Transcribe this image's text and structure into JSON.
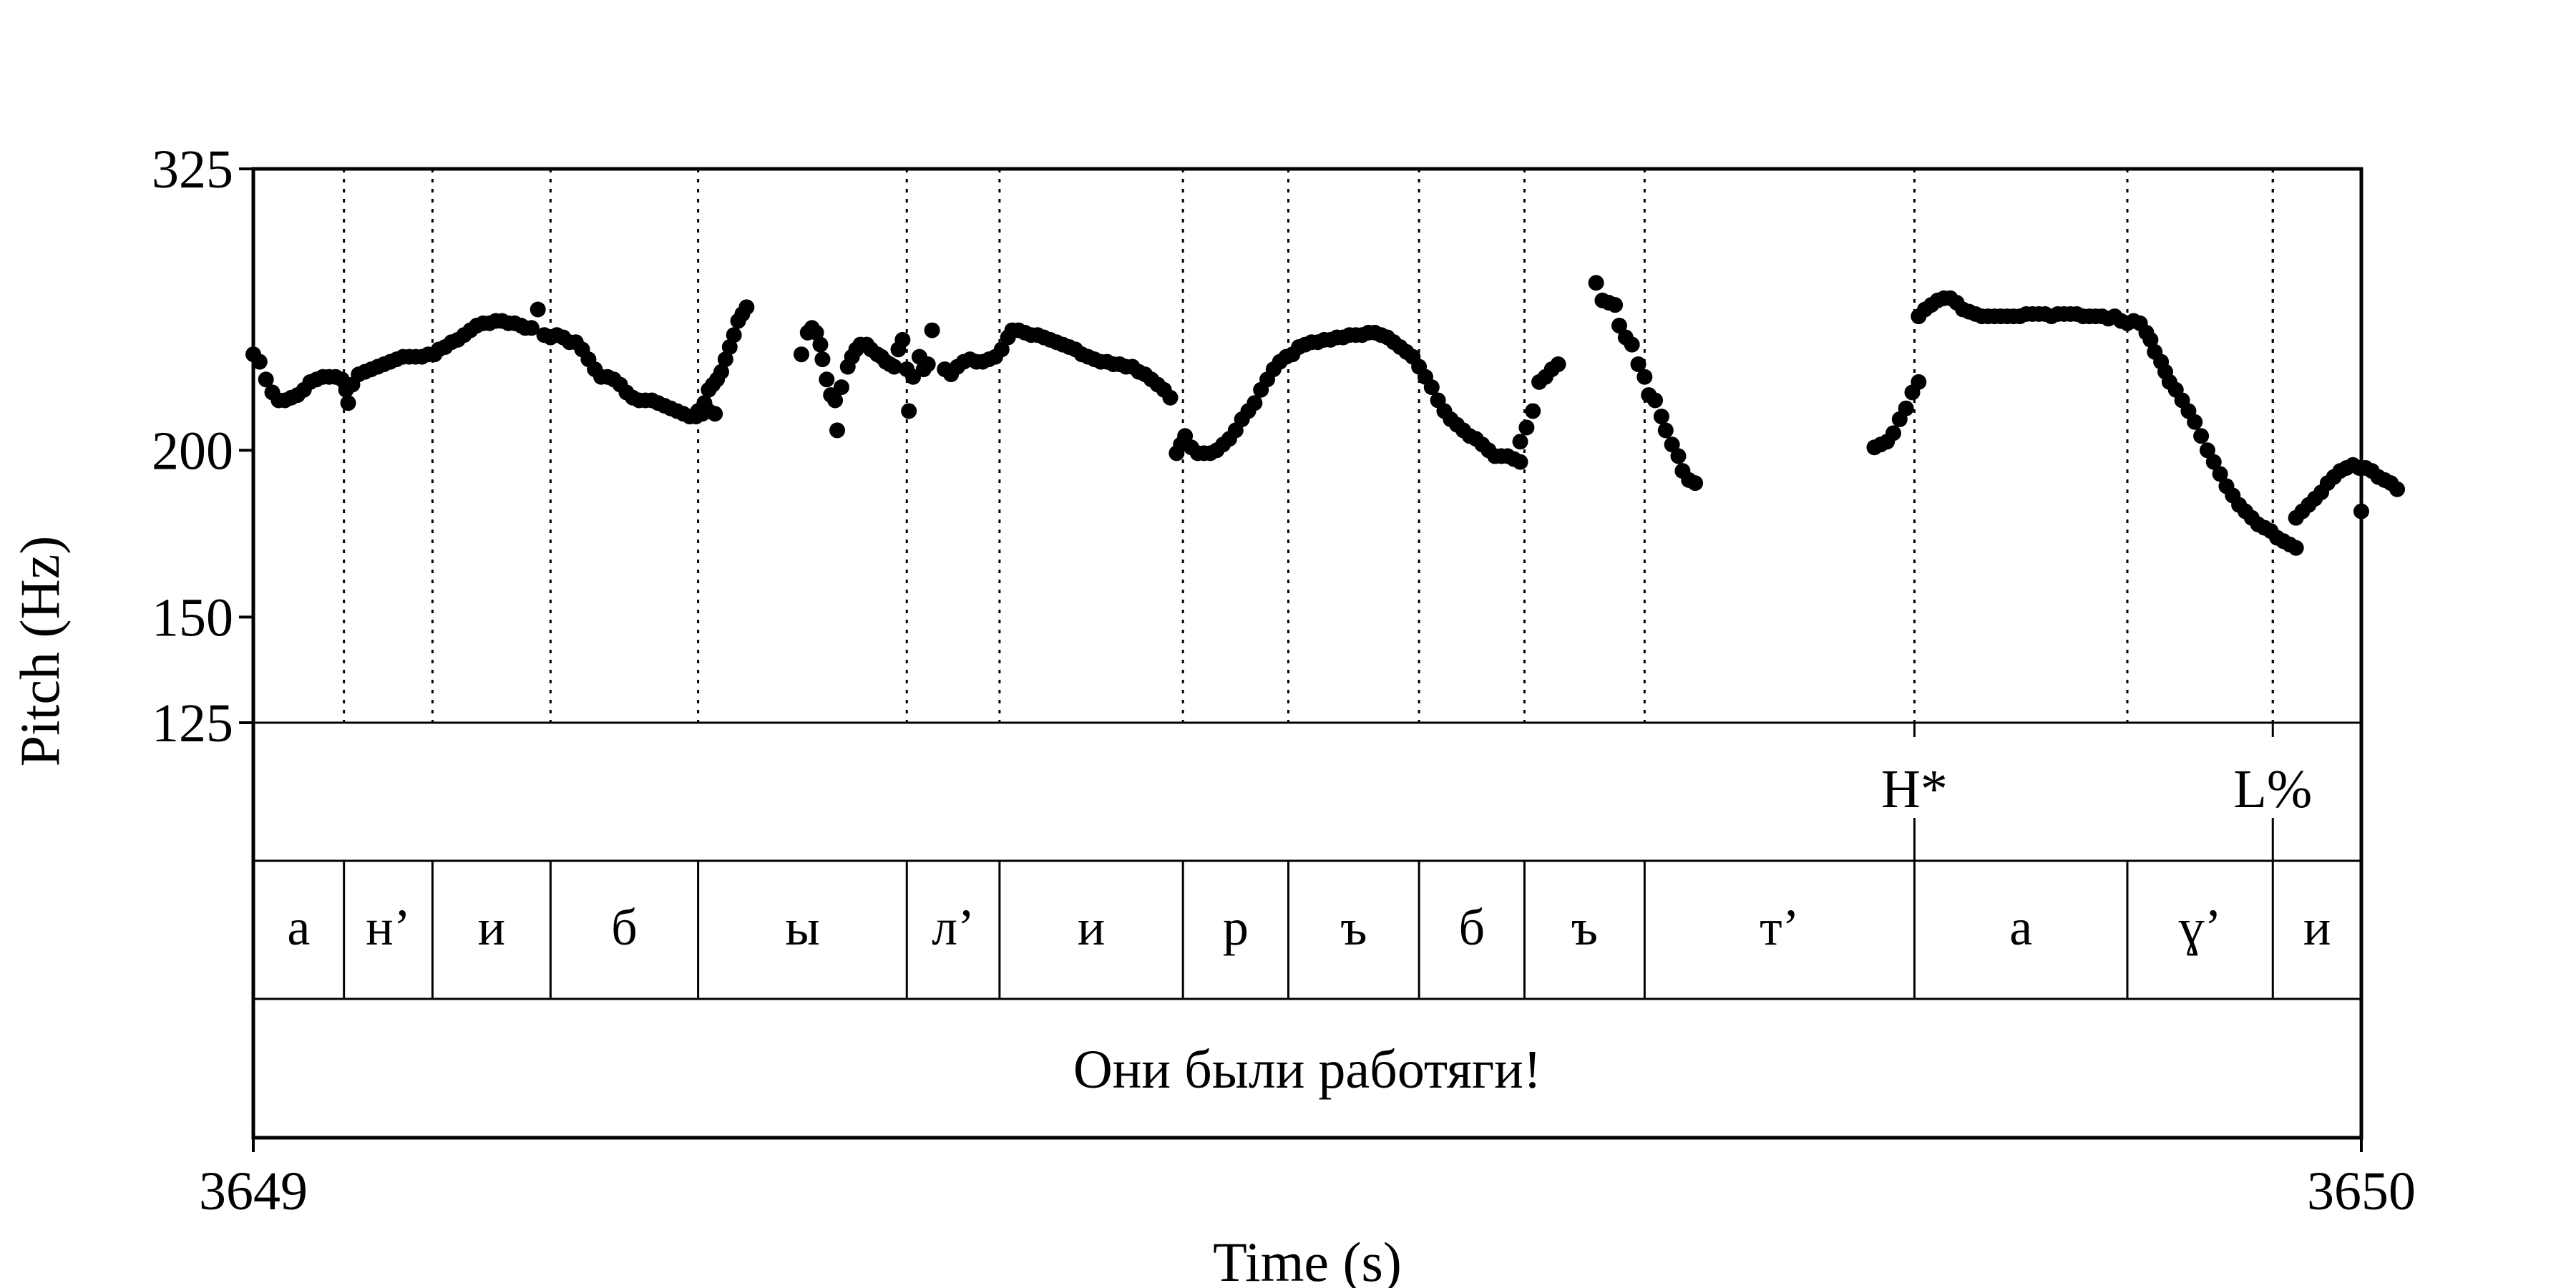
{
  "chart_data": {
    "type": "scatter",
    "ylabel": "Pitch (Hz)",
    "xlabel": "Time (s)",
    "xlim": [
      3649,
      3650
    ],
    "ylim": [
      125,
      325
    ],
    "y_scale": "log",
    "y_ticks": [
      "125",
      "150",
      "200",
      "325"
    ],
    "x_ticks": [
      "3649",
      "3650"
    ],
    "grid": false,
    "legend": "none",
    "pitch_points": [
      [
        3649.0,
        236
      ],
      [
        3649.003,
        233
      ],
      [
        3649.006,
        226
      ],
      [
        3649.009,
        221
      ],
      [
        3649.012,
        218
      ],
      [
        3649.015,
        218
      ],
      [
        3649.018,
        219
      ],
      [
        3649.021,
        220
      ],
      [
        3649.024,
        222
      ],
      [
        3649.027,
        225
      ],
      [
        3649.03,
        226
      ],
      [
        3649.033,
        227
      ],
      [
        3649.036,
        227
      ],
      [
        3649.039,
        227
      ],
      [
        3649.042,
        226
      ],
      [
        3649.044,
        222
      ],
      [
        3649.045,
        217
      ],
      [
        3649.047,
        224
      ],
      [
        3649.05,
        228
      ],
      [
        3649.053,
        229
      ],
      [
        3649.056,
        230
      ],
      [
        3649.059,
        231
      ],
      [
        3649.062,
        232
      ],
      [
        3649.065,
        233
      ],
      [
        3649.068,
        234
      ],
      [
        3649.071,
        235
      ],
      [
        3649.074,
        235
      ],
      [
        3649.077,
        235
      ],
      [
        3649.08,
        235
      ],
      [
        3649.083,
        236
      ],
      [
        3649.086,
        236
      ],
      [
        3649.088,
        238
      ],
      [
        3649.091,
        239
      ],
      [
        3649.094,
        241
      ],
      [
        3649.097,
        242
      ],
      [
        3649.1,
        244
      ],
      [
        3649.103,
        246
      ],
      [
        3649.106,
        248
      ],
      [
        3649.109,
        249
      ],
      [
        3649.112,
        249
      ],
      [
        3649.115,
        250
      ],
      [
        3649.118,
        250
      ],
      [
        3649.121,
        249
      ],
      [
        3649.124,
        249
      ],
      [
        3649.127,
        248
      ],
      [
        3649.129,
        247
      ],
      [
        3649.132,
        247
      ],
      [
        3649.135,
        255
      ],
      [
        3649.138,
        244
      ],
      [
        3649.141,
        243
      ],
      [
        3649.144,
        244
      ],
      [
        3649.147,
        243
      ],
      [
        3649.15,
        241
      ],
      [
        3649.153,
        241
      ],
      [
        3649.156,
        238
      ],
      [
        3649.159,
        234
      ],
      [
        3649.162,
        230
      ],
      [
        3649.165,
        227
      ],
      [
        3649.168,
        227
      ],
      [
        3649.171,
        226
      ],
      [
        3649.174,
        224
      ],
      [
        3649.177,
        221
      ],
      [
        3649.18,
        219
      ],
      [
        3649.183,
        218
      ],
      [
        3649.186,
        218
      ],
      [
        3649.189,
        218
      ],
      [
        3649.192,
        217
      ],
      [
        3649.195,
        216
      ],
      [
        3649.198,
        215
      ],
      [
        3649.201,
        214
      ],
      [
        3649.204,
        213
      ],
      [
        3649.207,
        212
      ],
      [
        3649.21,
        212
      ],
      [
        3649.213,
        213
      ],
      [
        3649.216,
        214
      ],
      [
        3649.219,
        213
      ],
      [
        3649.211,
        214
      ],
      [
        3649.213,
        215
      ],
      [
        3649.214,
        217
      ],
      [
        3649.216,
        222
      ],
      [
        3649.218,
        224
      ],
      [
        3649.22,
        226
      ],
      [
        3649.222,
        229
      ],
      [
        3649.224,
        234
      ],
      [
        3649.226,
        239
      ],
      [
        3649.228,
        244
      ],
      [
        3649.23,
        250
      ],
      [
        3649.232,
        253
      ],
      [
        3649.234,
        256
      ],
      [
        3649.26,
        236
      ],
      [
        3649.263,
        245
      ],
      [
        3649.265,
        247
      ],
      [
        3649.267,
        245
      ],
      [
        3649.269,
        240
      ],
      [
        3649.27,
        234
      ],
      [
        3649.272,
        226
      ],
      [
        3649.274,
        220
      ],
      [
        3649.276,
        218
      ],
      [
        3649.277,
        207
      ],
      [
        3649.279,
        223
      ],
      [
        3649.282,
        231
      ],
      [
        3649.284,
        235
      ],
      [
        3649.286,
        238
      ],
      [
        3649.288,
        240
      ],
      [
        3649.291,
        240
      ],
      [
        3649.293,
        238
      ],
      [
        3649.296,
        236
      ],
      [
        3649.298,
        235
      ],
      [
        3649.3,
        233
      ],
      [
        3649.302,
        232
      ],
      [
        3649.304,
        231
      ],
      [
        3649.306,
        238
      ],
      [
        3649.308,
        242
      ],
      [
        3649.31,
        230
      ],
      [
        3649.311,
        214
      ],
      [
        3649.313,
        227
      ],
      [
        3649.316,
        235
      ],
      [
        3649.318,
        230
      ],
      [
        3649.32,
        232
      ],
      [
        3649.322,
        246
      ],
      [
        3649.328,
        230
      ],
      [
        3649.331,
        228
      ],
      [
        3649.334,
        231
      ],
      [
        3649.337,
        233
      ],
      [
        3649.34,
        234
      ],
      [
        3649.343,
        233
      ],
      [
        3649.346,
        233
      ],
      [
        3649.349,
        234
      ],
      [
        3649.352,
        235
      ],
      [
        3649.355,
        238
      ],
      [
        3649.358,
        243
      ],
      [
        3649.36,
        246
      ],
      [
        3649.363,
        246
      ],
      [
        3649.366,
        245
      ],
      [
        3649.369,
        244
      ],
      [
        3649.372,
        244
      ],
      [
        3649.375,
        243
      ],
      [
        3649.378,
        242
      ],
      [
        3649.381,
        241
      ],
      [
        3649.384,
        240
      ],
      [
        3649.387,
        239
      ],
      [
        3649.39,
        238
      ],
      [
        3649.393,
        236
      ],
      [
        3649.396,
        235
      ],
      [
        3649.399,
        234
      ],
      [
        3649.402,
        233
      ],
      [
        3649.405,
        233
      ],
      [
        3649.408,
        232
      ],
      [
        3649.411,
        232
      ],
      [
        3649.414,
        231
      ],
      [
        3649.417,
        231
      ],
      [
        3649.42,
        229
      ],
      [
        3649.423,
        228
      ],
      [
        3649.426,
        226
      ],
      [
        3649.429,
        224
      ],
      [
        3649.432,
        222
      ],
      [
        3649.435,
        219
      ],
      [
        3649.438,
        199
      ],
      [
        3649.44,
        202
      ],
      [
        3649.442,
        205
      ],
      [
        3649.445,
        201
      ],
      [
        3649.448,
        199
      ],
      [
        3649.451,
        199
      ],
      [
        3649.454,
        199
      ],
      [
        3649.457,
        200
      ],
      [
        3649.46,
        202
      ],
      [
        3649.463,
        204
      ],
      [
        3649.466,
        207
      ],
      [
        3649.469,
        211
      ],
      [
        3649.472,
        214
      ],
      [
        3649.475,
        217
      ],
      [
        3649.478,
        222
      ],
      [
        3649.481,
        226
      ],
      [
        3649.484,
        230
      ],
      [
        3649.487,
        233
      ],
      [
        3649.49,
        235
      ],
      [
        3649.493,
        236
      ],
      [
        3649.496,
        239
      ],
      [
        3649.499,
        240
      ],
      [
        3649.502,
        241
      ],
      [
        3649.505,
        241
      ],
      [
        3649.508,
        242
      ],
      [
        3649.511,
        242
      ],
      [
        3649.514,
        243
      ],
      [
        3649.517,
        243
      ],
      [
        3649.52,
        244
      ],
      [
        3649.523,
        244
      ],
      [
        3649.526,
        244
      ],
      [
        3649.529,
        245
      ],
      [
        3649.532,
        245
      ],
      [
        3649.535,
        244
      ],
      [
        3649.538,
        243
      ],
      [
        3649.541,
        241
      ],
      [
        3649.544,
        239
      ],
      [
        3649.547,
        237
      ],
      [
        3649.55,
        235
      ],
      [
        3649.553,
        231
      ],
      [
        3649.556,
        227
      ],
      [
        3649.559,
        223
      ],
      [
        3649.562,
        218
      ],
      [
        3649.565,
        214
      ],
      [
        3649.568,
        211
      ],
      [
        3649.571,
        209
      ],
      [
        3649.574,
        207
      ],
      [
        3649.577,
        205
      ],
      [
        3649.58,
        204
      ],
      [
        3649.583,
        202
      ],
      [
        3649.586,
        200
      ],
      [
        3649.589,
        198
      ],
      [
        3649.592,
        198
      ],
      [
        3649.595,
        198
      ],
      [
        3649.598,
        197
      ],
      [
        3649.601,
        196
      ],
      [
        3649.601,
        203
      ],
      [
        3649.604,
        208
      ],
      [
        3649.607,
        214
      ],
      [
        3649.61,
        225
      ],
      [
        3649.613,
        227
      ],
      [
        3649.616,
        230
      ],
      [
        3649.619,
        232
      ],
      [
        3649.637,
        267
      ],
      [
        3649.64,
        259
      ],
      [
        3649.643,
        258
      ],
      [
        3649.646,
        257
      ],
      [
        3649.648,
        248
      ],
      [
        3649.651,
        243
      ],
      [
        3649.654,
        240
      ],
      [
        3649.657,
        232
      ],
      [
        3649.66,
        227
      ],
      [
        3649.662,
        220
      ],
      [
        3649.665,
        218
      ],
      [
        3649.668,
        212
      ],
      [
        3649.67,
        207
      ],
      [
        3649.673,
        202
      ],
      [
        3649.676,
        198
      ],
      [
        3649.678,
        193
      ],
      [
        3649.681,
        190
      ],
      [
        3649.684,
        189
      ],
      [
        3649.769,
        201
      ],
      [
        3649.772,
        202
      ],
      [
        3649.775,
        203
      ],
      [
        3649.778,
        206
      ],
      [
        3649.781,
        211
      ],
      [
        3649.784,
        215
      ],
      [
        3649.787,
        221
      ],
      [
        3649.79,
        225
      ],
      [
        3649.79,
        252
      ],
      [
        3649.793,
        255
      ],
      [
        3649.796,
        257
      ],
      [
        3649.799,
        259
      ],
      [
        3649.802,
        260
      ],
      [
        3649.805,
        260
      ],
      [
        3649.808,
        258
      ],
      [
        3649.811,
        255
      ],
      [
        3649.814,
        254
      ],
      [
        3649.817,
        253
      ],
      [
        3649.82,
        252
      ],
      [
        3649.823,
        252
      ],
      [
        3649.826,
        252
      ],
      [
        3649.829,
        252
      ],
      [
        3649.832,
        252
      ],
      [
        3649.835,
        252
      ],
      [
        3649.838,
        252
      ],
      [
        3649.841,
        253
      ],
      [
        3649.844,
        253
      ],
      [
        3649.847,
        253
      ],
      [
        3649.85,
        253
      ],
      [
        3649.853,
        252
      ],
      [
        3649.856,
        253
      ],
      [
        3649.859,
        253
      ],
      [
        3649.862,
        253
      ],
      [
        3649.865,
        253
      ],
      [
        3649.868,
        252
      ],
      [
        3649.871,
        252
      ],
      [
        3649.874,
        252
      ],
      [
        3649.877,
        252
      ],
      [
        3649.88,
        251
      ],
      [
        3649.883,
        252
      ],
      [
        3649.886,
        250
      ],
      [
        3649.889,
        249
      ],
      [
        3649.892,
        250
      ],
      [
        3649.895,
        249
      ],
      [
        3649.898,
        245
      ],
      [
        3649.9,
        242
      ],
      [
        3649.902,
        237
      ],
      [
        3649.905,
        233
      ],
      [
        3649.907,
        229
      ],
      [
        3649.909,
        225
      ],
      [
        3649.912,
        222
      ],
      [
        3649.915,
        218
      ],
      [
        3649.918,
        214
      ],
      [
        3649.921,
        210
      ],
      [
        3649.924,
        205
      ],
      [
        3649.927,
        200
      ],
      [
        3649.93,
        196
      ],
      [
        3649.933,
        192
      ],
      [
        3649.936,
        188
      ],
      [
        3649.939,
        185
      ],
      [
        3649.942,
        182
      ],
      [
        3649.945,
        180
      ],
      [
        3649.948,
        178
      ],
      [
        3649.951,
        176
      ],
      [
        3649.954,
        175
      ],
      [
        3649.957,
        174
      ],
      [
        3649.96,
        172
      ],
      [
        3649.963,
        171
      ],
      [
        3649.966,
        170
      ],
      [
        3649.969,
        169
      ],
      [
        3649.969,
        178
      ],
      [
        3649.972,
        180
      ],
      [
        3649.975,
        182
      ],
      [
        3649.978,
        184
      ],
      [
        3649.981,
        186
      ],
      [
        3649.984,
        189
      ],
      [
        3649.987,
        191
      ],
      [
        3649.99,
        193
      ],
      [
        3649.993,
        194
      ],
      [
        3649.996,
        195
      ],
      [
        3649.999,
        194
      ],
      [
        3650.002,
        194
      ],
      [
        3650.005,
        193
      ],
      [
        3650.008,
        191
      ],
      [
        3650.011,
        190
      ],
      [
        3650.014,
        189
      ],
      [
        3650.017,
        187
      ],
      [
        3650.0,
        180
      ]
    ],
    "tone_tier": {
      "labels": [
        {
          "text": "H*",
          "t": 3649.788
        },
        {
          "text": "L%",
          "t": 3649.958
        }
      ]
    },
    "segment_tier": {
      "boundaries": [
        3649.043,
        3649.085,
        3649.141,
        3649.211,
        3649.31,
        3649.354,
        3649.441,
        3649.491,
        3649.553,
        3649.603,
        3649.66,
        3649.788,
        3649.889,
        3649.958
      ],
      "labels": [
        "а",
        "н’",
        "и",
        "б",
        "ы",
        "л’",
        "и",
        "р",
        "ъ",
        "б",
        "ъ",
        "т’",
        "а",
        "ɣ’",
        "и"
      ]
    },
    "sentence_tier": {
      "text": "Они были работяги!"
    }
  }
}
